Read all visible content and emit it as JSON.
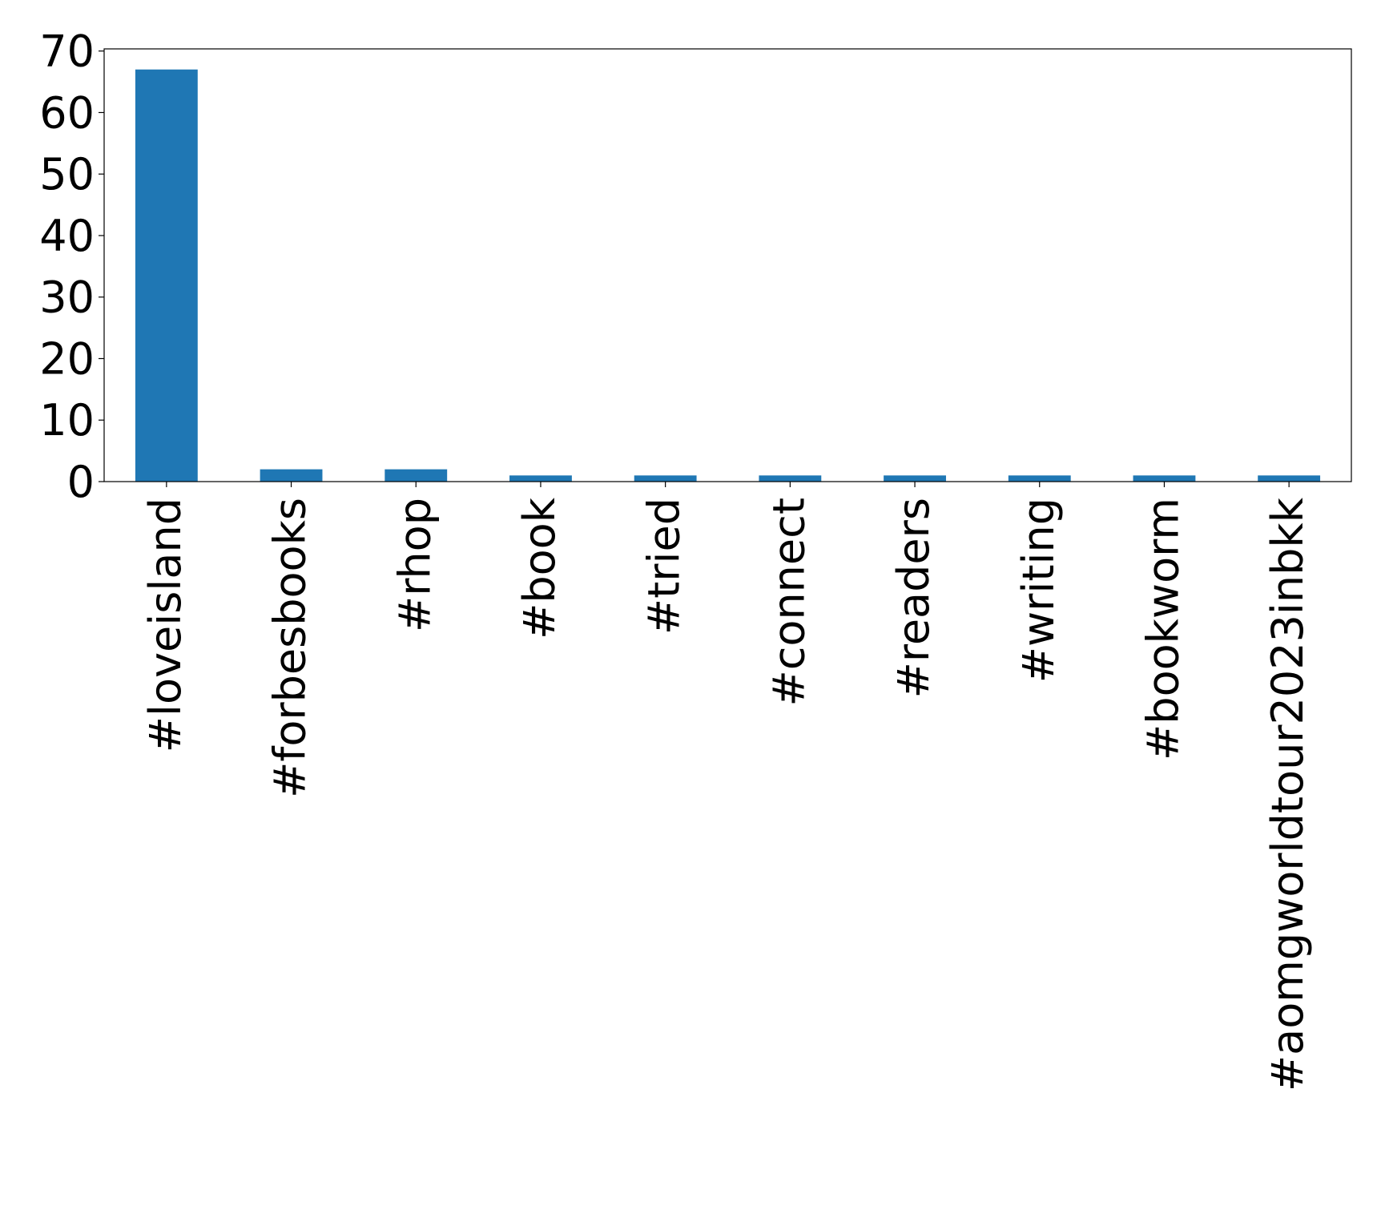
{
  "chart_data": {
    "type": "bar",
    "title": "",
    "xlabel": "",
    "ylabel": "",
    "categories": [
      "#loveisland",
      "#forbesbooks",
      "#rhop",
      "#book",
      "#tried",
      "#connect",
      "#readers",
      "#writing",
      "#bookworm",
      "#aomgworldtour2023inbkk"
    ],
    "values": [
      67,
      2,
      2,
      1,
      1,
      1,
      1,
      1,
      1,
      1
    ],
    "ylim": [
      0,
      70.35
    ],
    "yticks": [
      0,
      10,
      20,
      30,
      40,
      50,
      60,
      70
    ],
    "grid": false,
    "bar_color": "#1f77b4"
  }
}
